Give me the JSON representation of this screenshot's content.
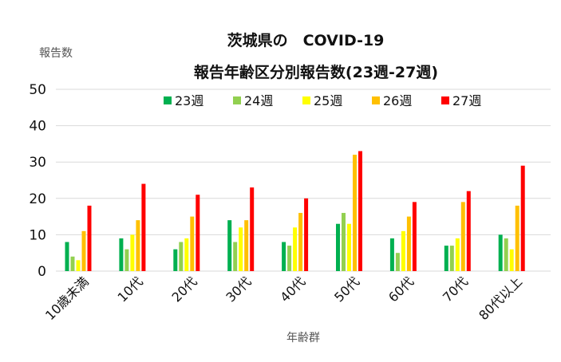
{
  "chart_data": {
    "type": "bar",
    "title": "茨城県の　COVID-19",
    "subtitle": "報告年齢区分別報告数(23週-27週)",
    "ylabel": "報告数",
    "xlabel": "年齢群",
    "ylim": [
      0,
      50
    ],
    "yticks": [
      "0",
      "10",
      "20",
      "30",
      "40",
      "50"
    ],
    "grid": true,
    "legend_position": "top",
    "categories": [
      "10歳未満",
      "10代",
      "20代",
      "30代",
      "40代",
      "50代",
      "60代",
      "70代",
      "80代以上"
    ],
    "series": [
      {
        "name": "23週",
        "color": "#00b050",
        "values": [
          8,
          9,
          6,
          14,
          8,
          13,
          9,
          7,
          10
        ]
      },
      {
        "name": "24週",
        "color": "#92d050",
        "values": [
          4,
          6,
          8,
          8,
          7,
          16,
          5,
          7,
          9
        ]
      },
      {
        "name": "25週",
        "color": "#ffff00",
        "values": [
          3,
          10,
          9,
          12,
          12,
          13,
          11,
          9,
          6
        ]
      },
      {
        "name": "26週",
        "color": "#ffc000",
        "values": [
          11,
          14,
          15,
          14,
          16,
          32,
          15,
          19,
          18
        ]
      },
      {
        "name": "27週",
        "color": "#ff0000",
        "values": [
          18,
          24,
          21,
          23,
          20,
          33,
          19,
          22,
          29
        ]
      }
    ]
  }
}
